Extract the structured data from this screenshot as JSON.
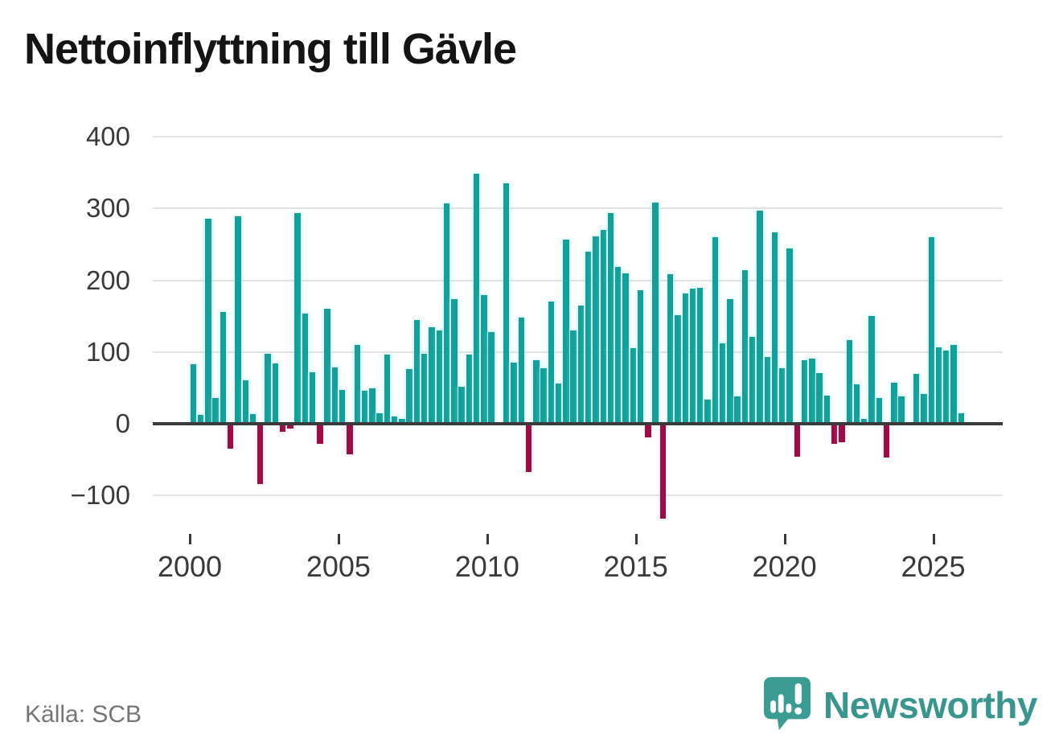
{
  "title": "Nettoinflyttning till Gävle",
  "source": "Källa: SCB",
  "branding": {
    "name": "Newsworthy",
    "icon": "newsworthy-speech-bubble-chart-icon"
  },
  "colors": {
    "positive_bar": "#12a09a",
    "negative_bar": "#9e0c46",
    "gridline": "#e3e3e3",
    "axis_line": "#3a3a3a",
    "axis_text": "#3a3a3a",
    "muted_text": "#757575",
    "brand_teal": "#39968e"
  },
  "chart_data": {
    "type": "bar",
    "title": "Nettoinflyttning till Gävle",
    "frequency": "quarterly",
    "start": "2000-Q1",
    "end": "2025-Q4",
    "values": [
      83,
      12,
      286,
      36,
      156,
      -33,
      289,
      60,
      14,
      -82,
      97,
      84,
      -9,
      -5,
      294,
      154,
      72,
      -26,
      160,
      78,
      47,
      -40,
      110,
      46,
      49,
      15,
      96,
      10,
      7,
      76,
      145,
      97,
      134,
      130,
      307,
      174,
      51,
      96,
      348,
      179,
      128,
      0,
      335,
      85,
      148,
      -65,
      89,
      77,
      170,
      56,
      257,
      130,
      165,
      240,
      261,
      270,
      293,
      218,
      210,
      105,
      186,
      -17,
      308,
      -130,
      208,
      151,
      181,
      188,
      189,
      34,
      260,
      112,
      174,
      38,
      214,
      121,
      297,
      93,
      267,
      77,
      244,
      -44,
      88,
      91,
      71,
      39,
      -26,
      -24,
      117,
      55,
      7,
      150,
      36,
      -45,
      57,
      38,
      0,
      70,
      41,
      260,
      106,
      102,
      110,
      15
    ],
    "x_tick_years": [
      2000,
      2005,
      2010,
      2015,
      2020,
      2025
    ],
    "y_ticks": [
      400,
      300,
      200,
      100,
      0,
      -100
    ],
    "y_tick_labels": [
      "400",
      "300",
      "200",
      "100",
      "0",
      "−100"
    ],
    "ylim": [
      -150,
      420
    ],
    "grid": true,
    "legend": "none"
  }
}
